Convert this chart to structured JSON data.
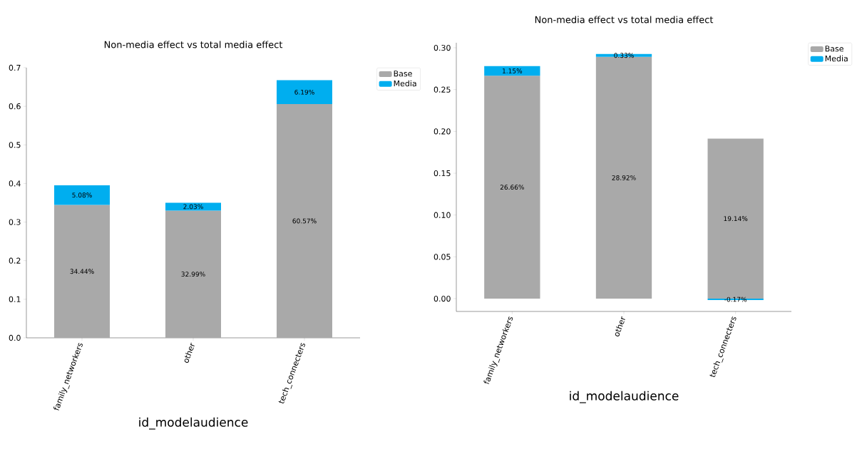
{
  "chart_data": [
    {
      "type": "bar",
      "title": "Non-media effect vs total media effect",
      "xlabel": "id_modelaudience",
      "stacked": true,
      "categories": [
        "family_networkers",
        "other",
        "tech_connecters"
      ],
      "series": [
        {
          "name": "Base",
          "color": "#a9a9a9",
          "values": [
            0.3444,
            0.3299,
            0.6057
          ],
          "value_labels": [
            "34.44%",
            "32.99%",
            "60.57%"
          ]
        },
        {
          "name": "Media",
          "color": "#00aeef",
          "values": [
            0.0508,
            0.0203,
            0.0619
          ],
          "value_labels": [
            "5.08%",
            "2.03%",
            "6.19%"
          ]
        }
      ],
      "ylim": [
        0,
        0.7
      ],
      "yticks": [
        {
          "value": 0,
          "label": "0.0"
        },
        0.1,
        0.2,
        0.3,
        0.4,
        0.5,
        0.6,
        0.7
      ],
      "legend": "top right"
    },
    {
      "type": "bar",
      "title": "Non-media effect vs total media effect",
      "xlabel": "id_modelaudience",
      "stacked": true,
      "categories": [
        "family_networkers",
        "other",
        "tech_connecters"
      ],
      "series": [
        {
          "name": "Base",
          "color": "#a9a9a9",
          "values": [
            0.2666,
            0.2892,
            0.1914
          ],
          "value_labels": [
            "26.66%",
            "28.92%",
            "19.14%"
          ]
        },
        {
          "name": "Media",
          "color": "#00aeef",
          "values": [
            0.0115,
            0.0033,
            -0.0017
          ],
          "value_labels": [
            "1.15%",
            "0.33%",
            "-0.17%"
          ]
        }
      ],
      "ylim": [
        -0.0153,
        0.306
      ],
      "yticks": [
        {
          "value": 0,
          "label": "0.00"
        },
        {
          "value": 0.05,
          "label": "0.05"
        },
        {
          "value": 0.1,
          "label": "0.10"
        },
        {
          "value": 0.15,
          "label": "0.15"
        },
        {
          "value": 0.2,
          "label": "0.20"
        },
        {
          "value": 0.25,
          "label": "0.25"
        },
        {
          "value": 0.3,
          "label": "0.30"
        }
      ],
      "legend": "top right"
    }
  ]
}
